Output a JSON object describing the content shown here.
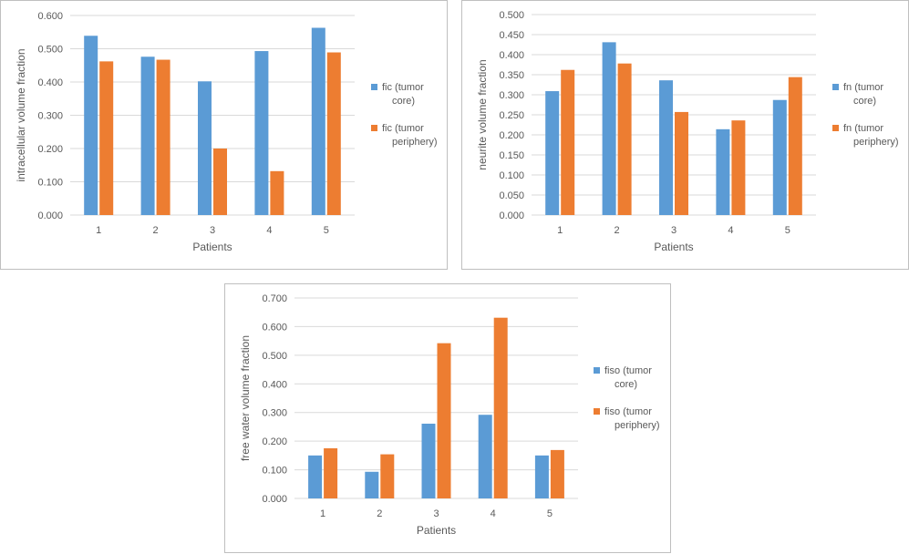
{
  "chart_data": [
    {
      "type": "bar",
      "categories": [
        "1",
        "2",
        "3",
        "4",
        "5"
      ],
      "series": [
        {
          "name": "fic (tumor core)",
          "legend_lines": [
            "fic (tumor",
            "core)"
          ],
          "color": "#5B9BD5",
          "values": [
            0.539,
            0.476,
            0.402,
            0.493,
            0.563
          ]
        },
        {
          "name": "fic (tumor periphery)",
          "legend_lines": [
            "fic (tumor",
            "periphery)"
          ],
          "color": "#ED7D31",
          "values": [
            0.462,
            0.467,
            0.2,
            0.132,
            0.489
          ]
        }
      ],
      "xlabel": "Patients",
      "ylabel": "intracellular volume fraction",
      "ylim": [
        0,
        0.6
      ],
      "yticks": [
        "0.000",
        "0.100",
        "0.200",
        "0.300",
        "0.400",
        "0.500",
        "0.600"
      ],
      "legend": "right"
    },
    {
      "type": "bar",
      "categories": [
        "1",
        "2",
        "3",
        "4",
        "5"
      ],
      "series": [
        {
          "name": "fn (tumor core)",
          "legend_lines": [
            "fn (tumor",
            "core)"
          ],
          "color": "#5B9BD5",
          "values": [
            0.309,
            0.431,
            0.336,
            0.214,
            0.287
          ]
        },
        {
          "name": "fn (tumor periphery)",
          "legend_lines": [
            "fn (tumor",
            "periphery)"
          ],
          "color": "#ED7D31",
          "values": [
            0.362,
            0.378,
            0.257,
            0.236,
            0.344
          ]
        }
      ],
      "xlabel": "Patients",
      "ylabel": "neurite volume fraction",
      "ylim": [
        0,
        0.5
      ],
      "yticks": [
        "0.000",
        "0.050",
        "0.100",
        "0.150",
        "0.200",
        "0.250",
        "0.300",
        "0.350",
        "0.400",
        "0.450",
        "0.500"
      ],
      "legend": "right"
    },
    {
      "type": "bar",
      "categories": [
        "1",
        "2",
        "3",
        "4",
        "5"
      ],
      "series": [
        {
          "name": "fiso (tumor core)",
          "legend_lines": [
            "fiso (tumor",
            "core)"
          ],
          "color": "#5B9BD5",
          "values": [
            0.15,
            0.093,
            0.261,
            0.292,
            0.15
          ]
        },
        {
          "name": "fiso (tumor periphery)",
          "legend_lines": [
            "fiso (tumor",
            "periphery)"
          ],
          "color": "#ED7D31",
          "values": [
            0.175,
            0.154,
            0.542,
            0.631,
            0.169
          ]
        }
      ],
      "xlabel": "Patients",
      "ylabel": "free water volume fraction",
      "ylim": [
        0,
        0.7
      ],
      "yticks": [
        "0.000",
        "0.100",
        "0.200",
        "0.300",
        "0.400",
        "0.500",
        "0.600",
        "0.700"
      ],
      "legend": "right"
    }
  ]
}
